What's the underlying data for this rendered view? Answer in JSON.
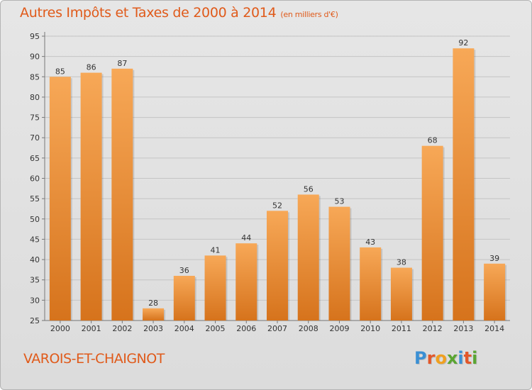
{
  "title": "Autres Impôts et Taxes de 2000 à 2014",
  "subtitle": "(en milliers d'€)",
  "commune": "VAROIS-ET-CHAIGNOT",
  "logo": {
    "letters": [
      "P",
      "r",
      "o",
      "x",
      "i",
      "t",
      "i"
    ],
    "colors": [
      "#3a8fd4",
      "#e2572a",
      "#f0a020",
      "#5aa532",
      "#3a8fd4",
      "#e2572a",
      "#5aa532"
    ]
  },
  "colors": {
    "bar": "#f0913a",
    "bar_light": "#f7a857",
    "bar_dark": "#d6731c",
    "title": "#e05a1a"
  },
  "chart_data": {
    "type": "bar",
    "categories": [
      "2000",
      "2001",
      "2002",
      "2003",
      "2004",
      "2005",
      "2006",
      "2007",
      "2008",
      "2009",
      "2010",
      "2011",
      "2012",
      "2013",
      "2014"
    ],
    "values": [
      85,
      86,
      87,
      28,
      36,
      41,
      44,
      52,
      56,
      53,
      43,
      38,
      68,
      92,
      39
    ],
    "ylim": [
      25,
      95
    ],
    "yticks": [
      25,
      30,
      35,
      40,
      45,
      50,
      55,
      60,
      65,
      70,
      75,
      80,
      85,
      90,
      95
    ],
    "grid": true
  }
}
